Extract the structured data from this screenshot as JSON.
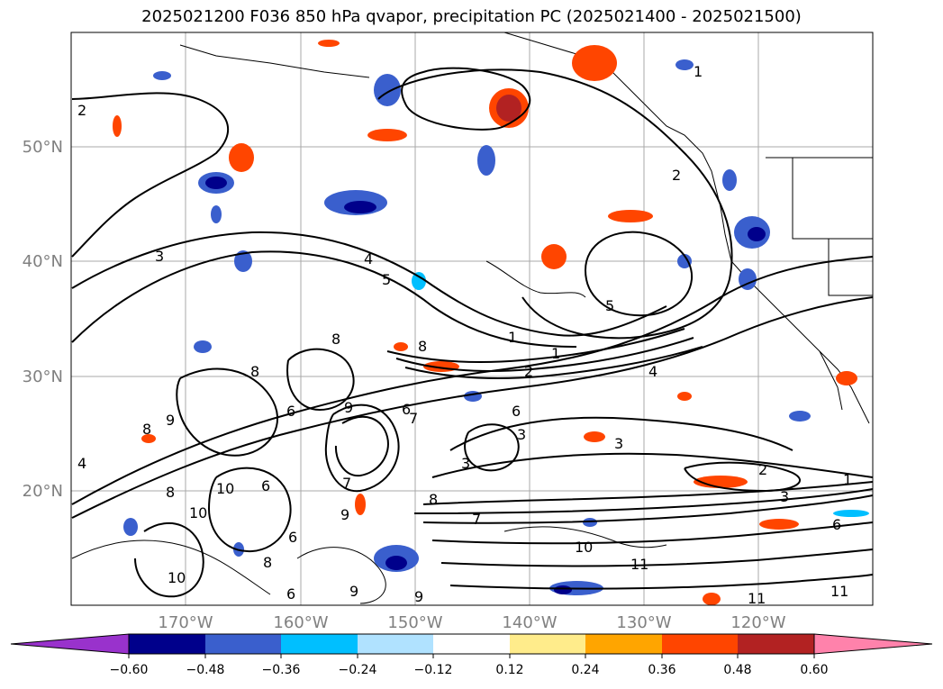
{
  "title": "2025021200 F036 850 hPa qvapor, precipitation PC (2025021400 - 2025021500)",
  "lat_labels": [
    "50°N",
    "40°N",
    "30°N",
    "20°N"
  ],
  "lon_labels": [
    "170°W",
    "160°W",
    "150°W",
    "140°W",
    "130°W",
    "120°W"
  ],
  "colorbar": {
    "colors": [
      "#9932CC",
      "#00008B",
      "#3A5FCD",
      "#00BFFF",
      "#B0E2FF",
      "#FFFFFF",
      "#FFEC8B",
      "#FFA500",
      "#FF4500",
      "#B22222",
      "#FF82AB"
    ],
    "tick_labels": [
      "−0.60",
      "−0.48",
      "−0.36",
      "−0.24",
      "−0.12",
      "0.12",
      "0.24",
      "0.36",
      "0.48",
      "0.60"
    ]
  },
  "contour_labels": [
    "2",
    "3",
    "4",
    "5",
    "1",
    "2",
    "1",
    "5",
    "1",
    "8",
    "2",
    "8",
    "3",
    "4",
    "6",
    "7",
    "3",
    "3",
    "2",
    "1",
    "8",
    "6",
    "9",
    "6",
    "8",
    "10",
    "9",
    "8",
    "6",
    "10",
    "7",
    "6",
    "10",
    "9",
    "8",
    "11",
    "6",
    "3",
    "7",
    "9",
    "11",
    "11",
    "9",
    "10",
    "4",
    "8",
    "6"
  ]
}
